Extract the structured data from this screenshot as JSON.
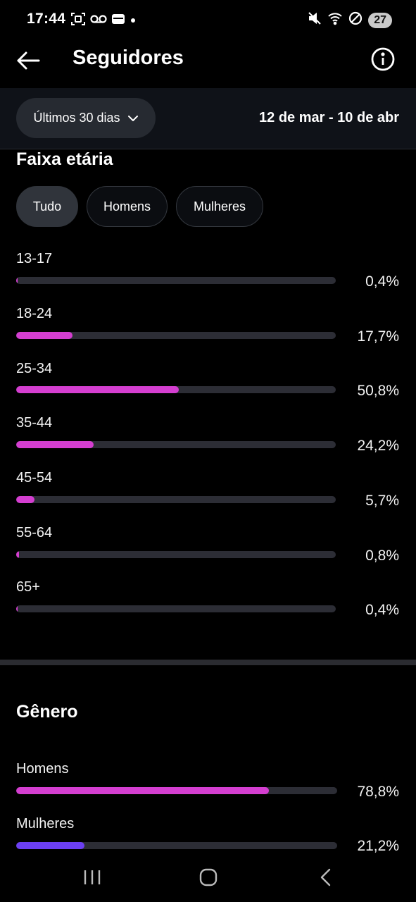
{
  "status_bar": {
    "time": "17:44",
    "left_icons": [
      "screenshot-icon",
      "voicemail-icon",
      "wallet-icon",
      "dot-icon"
    ],
    "right_icons": [
      "mute-icon",
      "wifi-icon",
      "do-not-disturb-icon"
    ],
    "battery": "27"
  },
  "header": {
    "title": "Seguidores",
    "back_icon": "arrow-left-icon",
    "info_icon": "info-icon"
  },
  "filter": {
    "period_label": "Últimos 30 dias",
    "date_range": "12 de mar - 10 de abr"
  },
  "age_section": {
    "title": "Faixa etária",
    "chips": [
      {
        "label": "Tudo",
        "active": true
      },
      {
        "label": "Homens",
        "active": false
      },
      {
        "label": "Mulheres",
        "active": false
      }
    ],
    "rows": [
      {
        "label": "13-17",
        "value": "0,4%",
        "fraction": 0.004
      },
      {
        "label": "18-24",
        "value": "17,7%",
        "fraction": 0.177
      },
      {
        "label": "25-34",
        "value": "50,8%",
        "fraction": 0.508
      },
      {
        "label": "35-44",
        "value": "24,2%",
        "fraction": 0.242
      },
      {
        "label": "45-54",
        "value": "5,7%",
        "fraction": 0.057
      },
      {
        "label": "55-64",
        "value": "0,8%",
        "fraction": 0.008
      },
      {
        "label": "65+",
        "value": "0,4%",
        "fraction": 0.004
      }
    ],
    "bar_color": "#d43ed0"
  },
  "gender_section": {
    "title": "Gênero",
    "rows": [
      {
        "label": "Homens",
        "value": "78,8%",
        "fraction": 0.788,
        "color": "#d43ed0"
      },
      {
        "label": "Mulheres",
        "value": "21,2%",
        "fraction": 0.212,
        "color": "#6b3ff2"
      }
    ]
  },
  "nav_bar": {
    "icons": [
      "recent-apps-icon",
      "home-icon",
      "back-nav-icon"
    ]
  }
}
